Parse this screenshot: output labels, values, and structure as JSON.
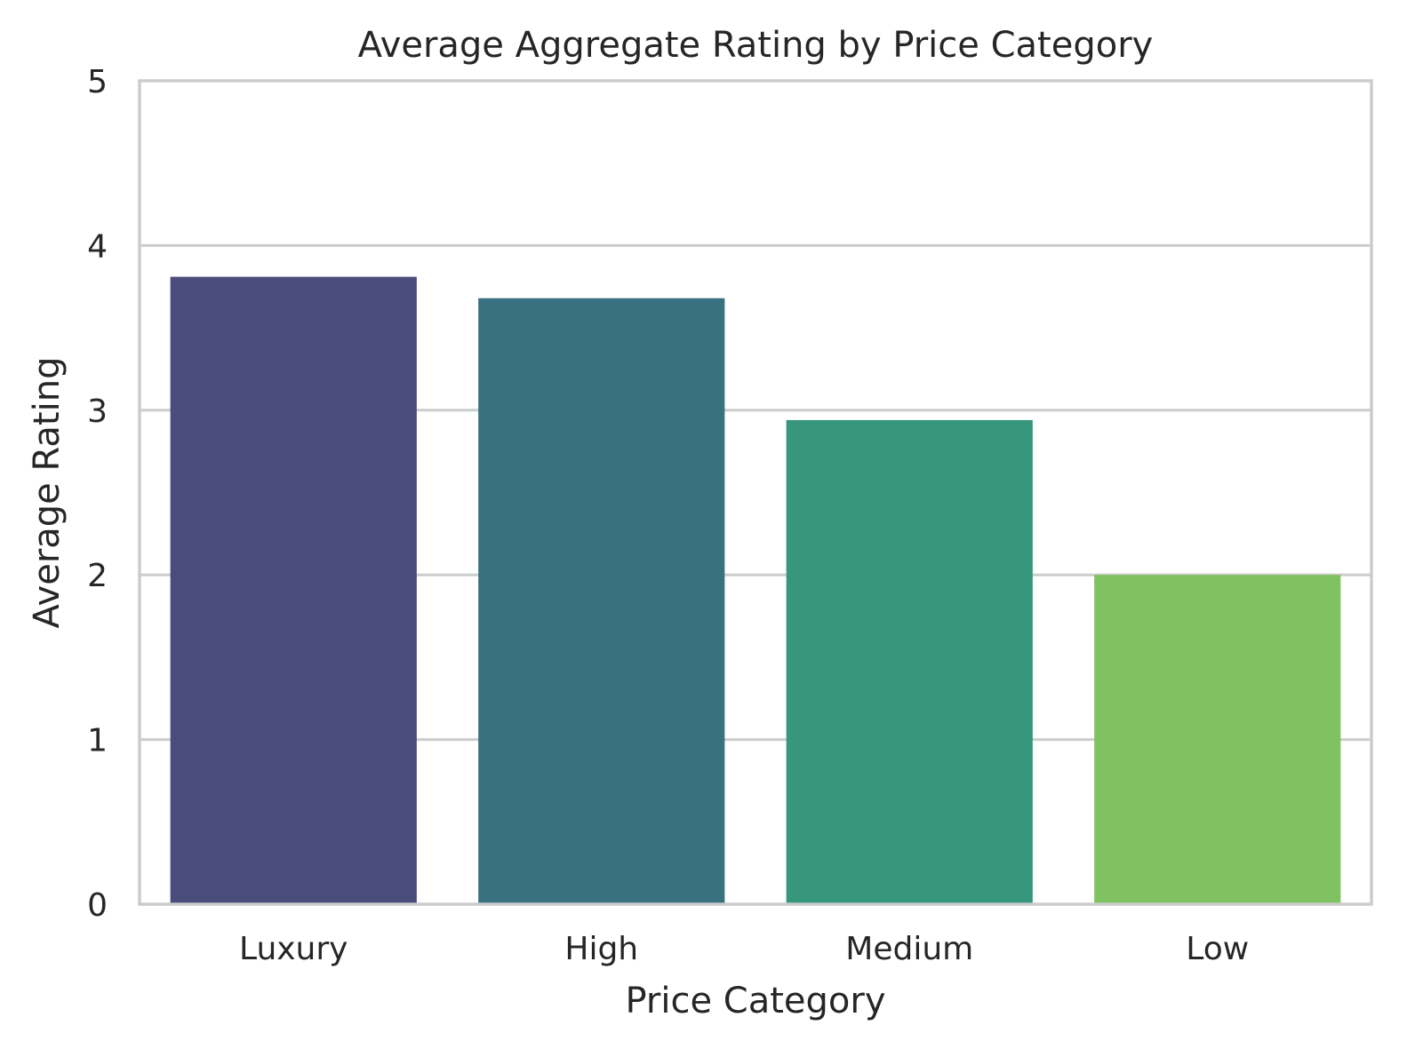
{
  "chart_data": {
    "type": "bar",
    "title": "Average Aggregate Rating by Price Category",
    "xlabel": "Price Category",
    "ylabel": "Average Rating",
    "categories": [
      "Luxury",
      "High",
      "Medium",
      "Low"
    ],
    "values": [
      3.81,
      3.68,
      2.94,
      2.0
    ],
    "colors": [
      "#4a4c7c",
      "#38717f",
      "#36977d",
      "#80c162"
    ],
    "ylim": [
      0,
      5
    ],
    "yticks": [
      "0",
      "1",
      "2",
      "3",
      "4",
      "5"
    ],
    "grid": "horizontal",
    "background": "#ffffff",
    "grid_color": "#cccccc"
  }
}
